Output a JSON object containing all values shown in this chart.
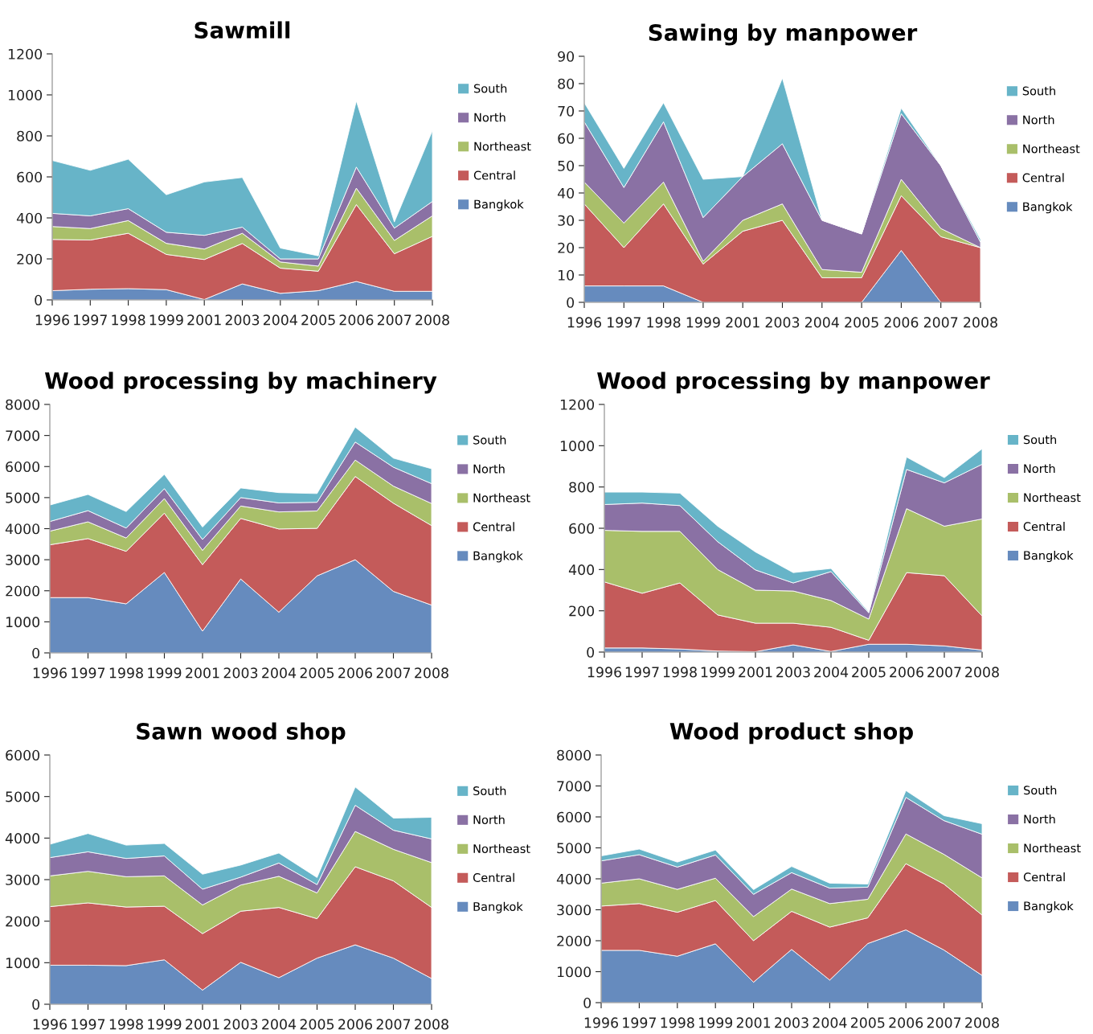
{
  "chart_data": [
    {
      "type": "area",
      "title": "Sawmill",
      "stacked": true,
      "legend": "right",
      "grid": false,
      "categories": [
        "1996",
        "1997",
        "1998",
        "1999",
        "2001",
        "2003",
        "2004",
        "2005",
        "2006",
        "2007",
        "2008"
      ],
      "ylim": [
        0,
        1200
      ],
      "yticks": [
        0,
        200,
        400,
        600,
        800,
        1000,
        1200
      ],
      "series": [
        {
          "name": "Bangkok",
          "color": "#668bbe",
          "values": [
            45,
            52,
            55,
            50,
            2,
            78,
            32,
            45,
            90,
            42,
            42
          ]
        },
        {
          "name": "Central",
          "color": "#c45b5a",
          "values": [
            250,
            240,
            270,
            172,
            195,
            197,
            123,
            95,
            375,
            183,
            268
          ]
        },
        {
          "name": "Northeast",
          "color": "#a9bf6a",
          "values": [
            63,
            56,
            62,
            54,
            51,
            50,
            30,
            25,
            80,
            65,
            100
          ]
        },
        {
          "name": "North",
          "color": "#8a71a4",
          "values": [
            64,
            62,
            58,
            54,
            67,
            30,
            15,
            35,
            103,
            60,
            70
          ]
        },
        {
          "name": "South",
          "color": "#67b4c8",
          "values": [
            258,
            222,
            241,
            183,
            260,
            242,
            53,
            15,
            322,
            30,
            345
          ]
        }
      ]
    },
    {
      "type": "area",
      "title": "Sawing by manpower",
      "stacked": true,
      "legend": "right",
      "grid": false,
      "categories": [
        "1996",
        "1997",
        "1998",
        "1999",
        "2001",
        "2003",
        "2004",
        "2005",
        "2006",
        "2007",
        "2008"
      ],
      "ylim": [
        0,
        90
      ],
      "yticks": [
        0,
        10,
        20,
        30,
        40,
        50,
        60,
        70,
        80,
        90
      ],
      "series": [
        {
          "name": "Bangkok",
          "color": "#668bbe",
          "values": [
            6,
            6,
            6,
            0,
            0,
            0,
            0,
            0,
            19,
            0,
            0
          ]
        },
        {
          "name": "Central",
          "color": "#c45b5a",
          "values": [
            30,
            14,
            30,
            14,
            26,
            30,
            9,
            9,
            20,
            24,
            20
          ]
        },
        {
          "name": "Northeast",
          "color": "#a9bf6a",
          "values": [
            8,
            9,
            8,
            1,
            4,
            6,
            3,
            2,
            6,
            3,
            0
          ]
        },
        {
          "name": "North",
          "color": "#8a71a4",
          "values": [
            22,
            13,
            22,
            16,
            16,
            22,
            18,
            14,
            24,
            23,
            2
          ]
        },
        {
          "name": "South",
          "color": "#67b4c8",
          "values": [
            7,
            7,
            7,
            14,
            0,
            24,
            0,
            0,
            2,
            0,
            1
          ]
        }
      ]
    },
    {
      "type": "area",
      "title": "Wood processing by machinery",
      "stacked": true,
      "legend": "right",
      "grid": false,
      "categories": [
        "1996",
        "1997",
        "1998",
        "1999",
        "2001",
        "2003",
        "2004",
        "2005",
        "2006",
        "2007",
        "2008"
      ],
      "ylim": [
        0,
        8000
      ],
      "yticks": [
        0,
        1000,
        2000,
        3000,
        4000,
        5000,
        6000,
        7000,
        8000
      ],
      "series": [
        {
          "name": "Bangkok",
          "color": "#668bbe",
          "values": [
            1780,
            1780,
            1580,
            2590,
            700,
            2380,
            1310,
            2480,
            3000,
            1980,
            1540
          ]
        },
        {
          "name": "Central",
          "color": "#c45b5a",
          "values": [
            1700,
            1900,
            1690,
            1910,
            2140,
            1950,
            2680,
            1530,
            2680,
            2840,
            2560
          ]
        },
        {
          "name": "Northeast",
          "color": "#a9bf6a",
          "values": [
            440,
            540,
            430,
            470,
            460,
            400,
            550,
            560,
            530,
            550,
            710
          ]
        },
        {
          "name": "North",
          "color": "#8a71a4",
          "values": [
            310,
            360,
            320,
            320,
            350,
            270,
            290,
            280,
            580,
            610,
            640
          ]
        },
        {
          "name": "South",
          "color": "#67b4c8",
          "values": [
            530,
            520,
            530,
            460,
            400,
            310,
            330,
            280,
            480,
            290,
            480
          ]
        }
      ]
    },
    {
      "type": "area",
      "title": "Wood processing by manpower",
      "stacked": true,
      "legend": "right",
      "grid": false,
      "categories": [
        "1996",
        "1997",
        "1998",
        "1999",
        "2001",
        "2003",
        "2004",
        "2005",
        "2006",
        "2007",
        "2008"
      ],
      "ylim": [
        0,
        1200
      ],
      "yticks": [
        0,
        200,
        400,
        600,
        800,
        1000,
        1200
      ],
      "series": [
        {
          "name": "Bangkok",
          "color": "#668bbe",
          "values": [
            20,
            20,
            15,
            5,
            2,
            35,
            3,
            38,
            38,
            30,
            10
          ]
        },
        {
          "name": "Central",
          "color": "#c45b5a",
          "values": [
            320,
            265,
            320,
            175,
            138,
            105,
            117,
            19,
            347,
            340,
            165
          ]
        },
        {
          "name": "Northeast",
          "color": "#a9bf6a",
          "values": [
            250,
            300,
            250,
            220,
            160,
            156,
            130,
            103,
            310,
            240,
            470
          ]
        },
        {
          "name": "North",
          "color": "#8a71a4",
          "values": [
            125,
            137,
            125,
            135,
            98,
            39,
            140,
            30,
            190,
            210,
            265
          ]
        },
        {
          "name": "South",
          "color": "#67b4c8",
          "values": [
            60,
            53,
            60,
            75,
            87,
            50,
            15,
            5,
            60,
            25,
            75
          ]
        }
      ]
    },
    {
      "type": "area",
      "title": "Sawn wood shop",
      "stacked": true,
      "legend": "right",
      "grid": false,
      "categories": [
        "1996",
        "1997",
        "1998",
        "1999",
        "2001",
        "2003",
        "2004",
        "2005",
        "2006",
        "2007",
        "2008"
      ],
      "ylim": [
        0,
        6000
      ],
      "yticks": [
        0,
        1000,
        2000,
        3000,
        4000,
        5000,
        6000
      ],
      "series": [
        {
          "name": "Bangkok",
          "color": "#668bbe",
          "values": [
            940,
            940,
            930,
            1070,
            340,
            1010,
            640,
            1110,
            1430,
            1110,
            620
          ]
        },
        {
          "name": "Central",
          "color": "#c45b5a",
          "values": [
            1410,
            1500,
            1410,
            1290,
            1360,
            1230,
            1690,
            950,
            1880,
            1860,
            1710
          ]
        },
        {
          "name": "Northeast",
          "color": "#a9bf6a",
          "values": [
            740,
            760,
            730,
            730,
            690,
            630,
            750,
            620,
            850,
            760,
            1080
          ]
        },
        {
          "name": "North",
          "color": "#8a71a4",
          "values": [
            440,
            470,
            440,
            480,
            380,
            190,
            320,
            200,
            630,
            460,
            570
          ]
        },
        {
          "name": "South",
          "color": "#67b4c8",
          "values": [
            320,
            440,
            320,
            300,
            360,
            290,
            240,
            170,
            440,
            290,
            520
          ]
        }
      ]
    },
    {
      "type": "area",
      "title": "Wood product shop",
      "stacked": true,
      "legend": "right",
      "grid": false,
      "categories": [
        "1996",
        "1997",
        "1998",
        "1999",
        "2001",
        "2003",
        "2004",
        "2005",
        "2006",
        "2007",
        "2008"
      ],
      "ylim": [
        0,
        8000
      ],
      "yticks": [
        0,
        1000,
        2000,
        3000,
        4000,
        5000,
        6000,
        7000,
        8000
      ],
      "series": [
        {
          "name": "Bangkok",
          "color": "#668bbe",
          "values": [
            1690,
            1690,
            1500,
            1900,
            660,
            1720,
            730,
            1910,
            2350,
            1700,
            880
          ]
        },
        {
          "name": "Central",
          "color": "#c45b5a",
          "values": [
            1430,
            1510,
            1420,
            1400,
            1340,
            1230,
            1710,
            830,
            2140,
            2130,
            1950
          ]
        },
        {
          "name": "Northeast",
          "color": "#a9bf6a",
          "values": [
            740,
            800,
            740,
            720,
            780,
            720,
            760,
            600,
            960,
            960,
            1200
          ]
        },
        {
          "name": "North",
          "color": "#8a71a4",
          "values": [
            720,
            780,
            720,
            750,
            720,
            530,
            500,
            390,
            1180,
            1090,
            1410
          ]
        },
        {
          "name": "South",
          "color": "#67b4c8",
          "values": [
            160,
            180,
            160,
            160,
            150,
            200,
            160,
            100,
            220,
            160,
            340
          ]
        }
      ]
    }
  ]
}
